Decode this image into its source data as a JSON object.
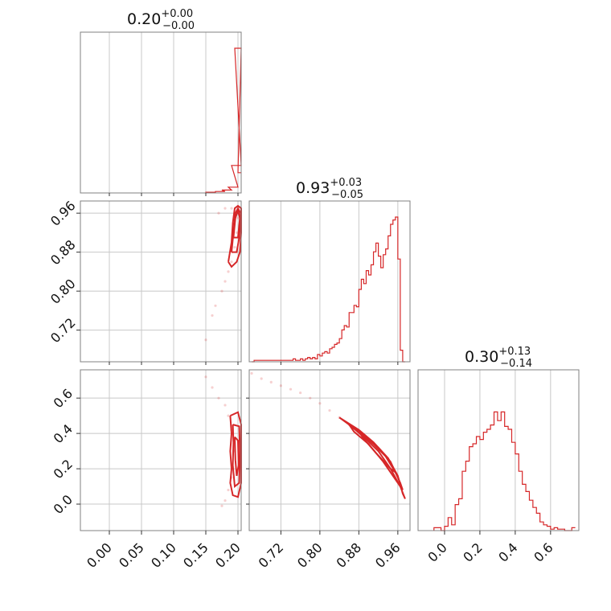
{
  "chart_data": {
    "type": "corner",
    "color": "#d62728",
    "grid": true,
    "parameters": [
      {
        "title": {
          "value": "0.20",
          "plus": "+0.00",
          "minus": "−0.00"
        },
        "range": [
          -0.045,
          0.205
        ],
        "ticks": [
          {
            "v": 0.0,
            "label": "0.00"
          },
          {
            "v": 0.05,
            "label": "0.05"
          },
          {
            "v": 0.1,
            "label": "0.10"
          },
          {
            "v": 0.15,
            "label": "0.15"
          },
          {
            "v": 0.2,
            "label": "0.20"
          }
        ]
      },
      {
        "title": {
          "value": "0.93",
          "plus": "+0.03",
          "minus": "−0.05"
        },
        "range": [
          0.655,
          0.985
        ],
        "ticks": [
          {
            "v": 0.72,
            "label": "0.72"
          },
          {
            "v": 0.8,
            "label": "0.80"
          },
          {
            "v": 0.88,
            "label": "0.88"
          },
          {
            "v": 0.96,
            "label": "0.96"
          }
        ]
      },
      {
        "title": {
          "value": "0.30",
          "plus": "+0.13",
          "minus": "−0.14"
        },
        "range": [
          -0.15,
          0.76
        ],
        "ticks": [
          {
            "v": 0.0,
            "label": "0.0"
          },
          {
            "v": 0.2,
            "label": "0.2"
          },
          {
            "v": 0.4,
            "label": "0.4"
          },
          {
            "v": 0.6,
            "label": "0.6"
          }
        ]
      }
    ],
    "histograms": [
      {
        "bins": [
          [
            0.15,
            0.005
          ],
          [
            0.165,
            0.01
          ],
          [
            0.175,
            0.02
          ],
          [
            0.185,
            0.04
          ],
          [
            0.19,
            0.19
          ],
          [
            0.195,
            1.0
          ],
          [
            0.2,
            0.14
          ]
        ]
      },
      {
        "bins": [
          [
            0.66,
            0.0
          ],
          [
            0.665,
            0.01
          ],
          [
            0.67,
            0.01
          ],
          [
            0.675,
            0.01
          ],
          [
            0.68,
            0.01
          ],
          [
            0.685,
            0.01
          ],
          [
            0.69,
            0.01
          ],
          [
            0.695,
            0.01
          ],
          [
            0.7,
            0.01
          ],
          [
            0.705,
            0.01
          ],
          [
            0.71,
            0.01
          ],
          [
            0.715,
            0.01
          ],
          [
            0.72,
            0.01
          ],
          [
            0.725,
            0.01
          ],
          [
            0.73,
            0.01
          ],
          [
            0.735,
            0.01
          ],
          [
            0.74,
            0.01
          ],
          [
            0.745,
            0.02
          ],
          [
            0.75,
            0.01
          ],
          [
            0.755,
            0.01
          ],
          [
            0.76,
            0.02
          ],
          [
            0.765,
            0.01
          ],
          [
            0.77,
            0.02
          ],
          [
            0.775,
            0.03
          ],
          [
            0.78,
            0.02
          ],
          [
            0.785,
            0.03
          ],
          [
            0.79,
            0.02
          ],
          [
            0.795,
            0.05
          ],
          [
            0.8,
            0.04
          ],
          [
            0.805,
            0.06
          ],
          [
            0.81,
            0.07
          ],
          [
            0.815,
            0.06
          ],
          [
            0.82,
            0.09
          ],
          [
            0.825,
            0.1
          ],
          [
            0.83,
            0.12
          ],
          [
            0.835,
            0.13
          ],
          [
            0.84,
            0.16
          ],
          [
            0.845,
            0.22
          ],
          [
            0.85,
            0.25
          ],
          [
            0.855,
            0.24
          ],
          [
            0.86,
            0.34
          ],
          [
            0.865,
            0.34
          ],
          [
            0.87,
            0.39
          ],
          [
            0.875,
            0.38
          ],
          [
            0.88,
            0.5
          ],
          [
            0.885,
            0.57
          ],
          [
            0.89,
            0.54
          ],
          [
            0.895,
            0.63
          ],
          [
            0.9,
            0.6
          ],
          [
            0.905,
            0.67
          ],
          [
            0.91,
            0.76
          ],
          [
            0.915,
            0.82
          ],
          [
            0.92,
            0.73
          ],
          [
            0.925,
            0.65
          ],
          [
            0.93,
            0.74
          ],
          [
            0.935,
            0.78
          ],
          [
            0.94,
            0.87
          ],
          [
            0.945,
            0.95
          ],
          [
            0.95,
            0.98
          ],
          [
            0.955,
            1.0
          ],
          [
            0.96,
            0.71
          ],
          [
            0.965,
            0.08
          ],
          [
            0.97,
            0.0
          ]
        ]
      },
      {
        "bins": [
          [
            -0.06,
            0.02
          ],
          [
            -0.04,
            0.02
          ],
          [
            -0.02,
            0.0
          ],
          [
            0.0,
            0.03
          ],
          [
            0.02,
            0.09
          ],
          [
            0.04,
            0.04
          ],
          [
            0.06,
            0.18
          ],
          [
            0.08,
            0.22
          ],
          [
            0.1,
            0.41
          ],
          [
            0.12,
            0.48
          ],
          [
            0.14,
            0.58
          ],
          [
            0.16,
            0.6
          ],
          [
            0.18,
            0.65
          ],
          [
            0.2,
            0.63
          ],
          [
            0.22,
            0.68
          ],
          [
            0.24,
            0.7
          ],
          [
            0.26,
            0.73
          ],
          [
            0.28,
            0.82
          ],
          [
            0.3,
            0.76
          ],
          [
            0.32,
            0.82
          ],
          [
            0.34,
            0.72
          ],
          [
            0.36,
            0.7
          ],
          [
            0.38,
            0.61
          ],
          [
            0.4,
            0.53
          ],
          [
            0.42,
            0.41
          ],
          [
            0.44,
            0.32
          ],
          [
            0.46,
            0.27
          ],
          [
            0.48,
            0.21
          ],
          [
            0.5,
            0.16
          ],
          [
            0.52,
            0.12
          ],
          [
            0.54,
            0.06
          ],
          [
            0.56,
            0.04
          ],
          [
            0.58,
            0.03
          ],
          [
            0.6,
            0.01
          ],
          [
            0.62,
            0.02
          ],
          [
            0.64,
            0.01
          ],
          [
            0.66,
            0.01
          ],
          [
            0.68,
            0.0
          ],
          [
            0.7,
            0.0
          ],
          [
            0.72,
            0.02
          ]
        ]
      }
    ],
    "pairs": [
      {
        "x": 0,
        "y": 1,
        "scatter": [
          [
            0.15,
            0.7
          ],
          [
            0.16,
            0.75
          ],
          [
            0.165,
            0.77
          ],
          [
            0.175,
            0.8
          ],
          [
            0.18,
            0.82
          ],
          [
            0.185,
            0.84
          ],
          [
            0.19,
            0.86
          ],
          [
            0.195,
            0.89
          ],
          [
            0.198,
            0.92
          ],
          [
            0.2,
            0.95
          ],
          [
            0.17,
            0.96
          ],
          [
            0.18,
            0.97
          ],
          [
            0.19,
            0.97
          ]
        ],
        "contours": [
          [
            [
              0.185,
              0.86
            ],
            [
              0.19,
              0.9
            ],
            [
              0.192,
              0.94
            ],
            [
              0.195,
              0.97
            ],
            [
              0.2,
              0.975
            ],
            [
              0.205,
              0.97
            ],
            [
              0.205,
              0.92
            ],
            [
              0.203,
              0.88
            ],
            [
              0.198,
              0.86
            ],
            [
              0.19,
              0.85
            ],
            [
              0.185,
              0.86
            ]
          ],
          [
            [
              0.19,
              0.88
            ],
            [
              0.193,
              0.92
            ],
            [
              0.196,
              0.96
            ],
            [
              0.2,
              0.97
            ],
            [
              0.204,
              0.96
            ],
            [
              0.202,
              0.91
            ],
            [
              0.198,
              0.88
            ],
            [
              0.19,
              0.88
            ]
          ],
          [
            [
              0.193,
              0.91
            ],
            [
              0.196,
              0.95
            ],
            [
              0.2,
              0.965
            ],
            [
              0.203,
              0.95
            ],
            [
              0.2,
              0.91
            ],
            [
              0.193,
              0.91
            ]
          ]
        ]
      },
      {
        "x": 0,
        "y": 2,
        "scatter": [
          [
            0.15,
            0.72
          ],
          [
            0.16,
            0.66
          ],
          [
            0.17,
            0.6
          ],
          [
            0.18,
            0.56
          ],
          [
            0.185,
            0.5
          ],
          [
            0.19,
            0.42
          ],
          [
            0.195,
            0.3
          ],
          [
            0.19,
            0.15
          ],
          [
            0.185,
            0.08
          ],
          [
            0.18,
            0.02
          ],
          [
            0.175,
            -0.01
          ]
        ],
        "contours": [
          [
            [
              0.188,
              0.5
            ],
            [
              0.19,
              0.4
            ],
            [
              0.188,
              0.3
            ],
            [
              0.19,
              0.2
            ],
            [
              0.188,
              0.12
            ],
            [
              0.192,
              0.05
            ],
            [
              0.2,
              0.04
            ],
            [
              0.205,
              0.12
            ],
            [
              0.205,
              0.3
            ],
            [
              0.205,
              0.45
            ],
            [
              0.2,
              0.52
            ],
            [
              0.188,
              0.5
            ]
          ],
          [
            [
              0.192,
              0.45
            ],
            [
              0.193,
              0.35
            ],
            [
              0.192,
              0.22
            ],
            [
              0.195,
              0.1
            ],
            [
              0.202,
              0.12
            ],
            [
              0.203,
              0.3
            ],
            [
              0.202,
              0.44
            ],
            [
              0.192,
              0.45
            ]
          ],
          [
            [
              0.195,
              0.38
            ],
            [
              0.196,
              0.25
            ],
            [
              0.198,
              0.16
            ],
            [
              0.201,
              0.22
            ],
            [
              0.2,
              0.36
            ],
            [
              0.195,
              0.38
            ]
          ]
        ]
      },
      {
        "x": 1,
        "y": 2,
        "scatter": [
          [
            0.66,
            0.74
          ],
          [
            0.68,
            0.71
          ],
          [
            0.7,
            0.69
          ],
          [
            0.72,
            0.67
          ],
          [
            0.74,
            0.65
          ],
          [
            0.76,
            0.63
          ],
          [
            0.78,
            0.6
          ],
          [
            0.8,
            0.57
          ],
          [
            0.82,
            0.53
          ],
          [
            0.84,
            0.49
          ],
          [
            0.86,
            0.45
          ]
        ],
        "contours": [
          [
            [
              0.84,
              0.49
            ],
            [
              0.88,
              0.42
            ],
            [
              0.91,
              0.35
            ],
            [
              0.94,
              0.26
            ],
            [
              0.96,
              0.16
            ],
            [
              0.97,
              0.06
            ],
            [
              0.975,
              0.03
            ],
            [
              0.965,
              0.1
            ],
            [
              0.945,
              0.2
            ],
            [
              0.92,
              0.3
            ],
            [
              0.89,
              0.38
            ],
            [
              0.86,
              0.45
            ],
            [
              0.84,
              0.49
            ]
          ],
          [
            [
              0.86,
              0.45
            ],
            [
              0.89,
              0.39
            ],
            [
              0.92,
              0.32
            ],
            [
              0.945,
              0.24
            ],
            [
              0.965,
              0.12
            ],
            [
              0.97,
              0.08
            ],
            [
              0.955,
              0.14
            ],
            [
              0.93,
              0.24
            ],
            [
              0.9,
              0.34
            ],
            [
              0.87,
              0.41
            ],
            [
              0.86,
              0.45
            ]
          ],
          [
            [
              0.88,
              0.41
            ],
            [
              0.91,
              0.34
            ],
            [
              0.935,
              0.27
            ],
            [
              0.955,
              0.18
            ],
            [
              0.945,
              0.2
            ],
            [
              0.915,
              0.29
            ],
            [
              0.89,
              0.37
            ],
            [
              0.88,
              0.41
            ]
          ]
        ]
      }
    ]
  }
}
